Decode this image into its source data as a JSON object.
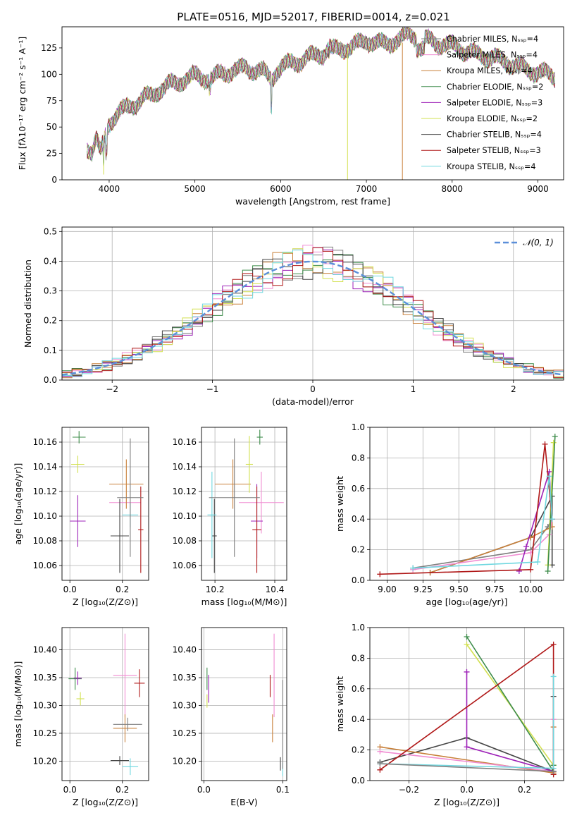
{
  "figure_title": "PLATE=0516, MJD=52017, FIBERID=0014, z=0.021",
  "series_colors": [
    "#7f7f7f",
    "#f08cd2",
    "#c8803a",
    "#3d8c4a",
    "#9e22b8",
    "#d2e050",
    "#454545",
    "#b01818",
    "#70d8e0"
  ],
  "chart_data": [
    {
      "id": "spectrum",
      "type": "line",
      "title": "PLATE=0516, MJD=52017, FIBERID=0014, z=0.021",
      "xlabel": "wavelength [Angstrom, rest frame]",
      "ylabel": "Flux [fλ10⁻¹⁷ erg cm⁻² s⁻¹ A⁻¹]",
      "xlim": [
        3450,
        9300
      ],
      "ylim": [
        0,
        145
      ],
      "xticks": [
        4000,
        5000,
        6000,
        7000,
        8000,
        9000
      ],
      "yticks": [
        0,
        25,
        50,
        75,
        100,
        125
      ],
      "legend": "top-right",
      "x": [
        3740,
        3800,
        3850,
        3900,
        3950,
        4000,
        4100,
        4200,
        4300,
        4400,
        4500,
        4600,
        4700,
        4800,
        4900,
        5000,
        5100,
        5200,
        5300,
        5400,
        5500,
        5600,
        5700,
        5800,
        5890,
        5950,
        6000,
        6100,
        6200,
        6300,
        6400,
        6500,
        6563,
        6600,
        6700,
        6800,
        6900,
        7000,
        7100,
        7200,
        7300,
        7400,
        7500,
        7600,
        7700,
        7800,
        7900,
        8000,
        8100,
        8200,
        8300,
        8400,
        8500,
        8600,
        8700,
        8800,
        8900,
        9000,
        9100,
        9200
      ],
      "y": [
        32,
        27,
        38,
        25,
        40,
        55,
        62,
        68,
        72,
        77,
        80,
        86,
        90,
        92,
        96,
        98,
        97,
        96,
        100,
        103,
        104,
        106,
        104,
        102,
        95,
        104,
        106,
        110,
        112,
        115,
        118,
        120,
        126,
        122,
        124,
        126,
        128,
        132,
        130,
        128,
        131,
        133,
        138,
        136,
        132,
        130,
        128,
        127,
        124,
        121,
        118,
        117,
        115,
        112,
        110,
        106,
        104,
        102,
        100,
        98
      ],
      "series": [
        {
          "name": "Chabrier MILES, Nₛₛₚ=4"
        },
        {
          "name": "Salpeter MILES, Nₛₛₚ=4"
        },
        {
          "name": "Kroupa MILES, Nₛₛₚ=4"
        },
        {
          "name": "Chabrier ELODIE, Nₛₛₚ=2"
        },
        {
          "name": "Salpeter ELODIE, Nₛₛₚ=3"
        },
        {
          "name": "Kroupa ELODIE, Nₛₛₚ=2"
        },
        {
          "name": "Chabrier STELIB, Nₛₛₚ=4"
        },
        {
          "name": "Salpeter STELIB, Nₛₛₚ=3"
        },
        {
          "name": "Kroupa STELIB, Nₛₛₚ=4"
        }
      ]
    },
    {
      "id": "residuals",
      "type": "line",
      "xlabel": "(data-model)/error",
      "ylabel": "Normed distribution",
      "xlim": [
        -2.5,
        2.5
      ],
      "ylim": [
        0,
        0.515
      ],
      "xticks": [
        -2,
        -1,
        0,
        1,
        2
      ],
      "yticks": [
        0.0,
        0.1,
        0.2,
        0.3,
        0.4,
        0.5
      ],
      "grid": true,
      "legend": "top-right",
      "reference_label": "𝒩(0, 1)",
      "bin_width": 0.1
    },
    {
      "id": "age_vs_Z",
      "type": "scatter",
      "xlabel": "Z [log₁₀(Z/Z⊙)]",
      "ylabel": "age  [log₁₀(age/yr)]",
      "xlim": [
        -0.03,
        0.3
      ],
      "ylim": [
        10.048,
        10.172
      ],
      "xticks": [
        0.0,
        0.2
      ],
      "yticks": [
        10.06,
        10.08,
        10.1,
        10.12,
        10.14,
        10.16
      ],
      "grid": true,
      "points": [
        {
          "series": 1,
          "x": 0.21,
          "y": 10.111,
          "ex": 0.06,
          "ey": 0.0
        },
        {
          "series": 2,
          "x": 0.215,
          "y": 10.126,
          "ex": 0.065,
          "ey": 0.02
        },
        {
          "series": 3,
          "x": 0.035,
          "y": 10.164,
          "ex": 0.025,
          "ey": 0.005
        },
        {
          "series": 4,
          "x": 0.03,
          "y": 10.096,
          "ex": 0.03,
          "ey": 0.021
        },
        {
          "series": 5,
          "x": 0.03,
          "y": 10.142,
          "ex": 0.025,
          "ey": 0.007
        },
        {
          "series": 6,
          "x": 0.19,
          "y": 10.084,
          "ex": 0.035,
          "ey": 0.03
        },
        {
          "series": 7,
          "x": 0.27,
          "y": 10.089,
          "ex": 0.01,
          "ey": 0.035
        },
        {
          "series": 8,
          "x": 0.23,
          "y": 10.101,
          "ex": 0.03,
          "ey": 0.01
        },
        {
          "series": 0,
          "x": 0.23,
          "y": 10.115,
          "ex": 0.05,
          "ey": 0.048
        }
      ]
    },
    {
      "id": "age_vs_mass",
      "type": "scatter",
      "xlabel": "mass [log₁₀(M/M⊙)]",
      "ylabel": "",
      "xlim": [
        10.155,
        10.44
      ],
      "ylim": [
        10.048,
        10.172
      ],
      "xticks": [
        10.2,
        10.4
      ],
      "yticks": [
        10.06,
        10.08,
        10.1,
        10.12,
        10.14,
        10.16
      ],
      "grid": true,
      "points": [
        {
          "series": 1,
          "x": 10.355,
          "y": 10.111,
          "ex": 0.075,
          "ey": 0.025
        },
        {
          "series": 2,
          "x": 10.26,
          "y": 10.126,
          "ex": 0.06,
          "ey": 0.02
        },
        {
          "series": 3,
          "x": 10.35,
          "y": 10.164,
          "ex": 0.01,
          "ey": 0.006
        },
        {
          "series": 4,
          "x": 10.34,
          "y": 10.096,
          "ex": 0.02,
          "ey": 0.03
        },
        {
          "series": 5,
          "x": 10.315,
          "y": 10.142,
          "ex": 0.012,
          "ey": 0.023
        },
        {
          "series": 6,
          "x": 10.198,
          "y": 10.084,
          "ex": 0.008,
          "ey": 0.03
        },
        {
          "series": 7,
          "x": 10.34,
          "y": 10.089,
          "ex": 0.015,
          "ey": 0.035
        },
        {
          "series": 8,
          "x": 10.19,
          "y": 10.101,
          "ex": 0.015,
          "ey": 0.035
        },
        {
          "series": 0,
          "x": 10.265,
          "y": 10.115,
          "ex": 0.085,
          "ey": 0.048
        }
      ]
    },
    {
      "id": "mass_weight_vs_age",
      "type": "line",
      "xlabel": "age  [log₁₀(age/yr)]",
      "ylabel": "mass weight",
      "xlim": [
        8.88,
        10.23
      ],
      "ylim": [
        0,
        1.0
      ],
      "xticks": [
        9.0,
        9.25,
        9.5,
        9.75,
        10.0
      ],
      "yticks": [
        0.0,
        0.2,
        0.4,
        0.6,
        0.8,
        1.0
      ],
      "grid": true,
      "lines": [
        {
          "series": 6,
          "x": [
            9.3,
            10.0,
            10.15,
            10.15
          ],
          "y": [
            0.05,
            0.28,
            0.55,
            0.1
          ]
        },
        {
          "series": 0,
          "x": [
            9.18,
            10.0,
            10.12,
            10.15
          ],
          "y": [
            0.08,
            0.2,
            0.35,
            0.4
          ]
        },
        {
          "series": 2,
          "x": [
            9.3,
            10.0,
            10.15,
            10.15
          ],
          "y": [
            0.05,
            0.28,
            0.35,
            0.4
          ]
        },
        {
          "series": 1,
          "x": [
            9.18,
            10.0,
            10.13,
            10.15
          ],
          "y": [
            0.07,
            0.18,
            0.3,
            0.4
          ]
        },
        {
          "series": 4,
          "x": [
            9.92,
            9.97,
            10.13,
            10.15
          ],
          "y": [
            0.06,
            0.22,
            0.71,
            0.4
          ]
        },
        {
          "series": 5,
          "x": [
            10.12,
            10.16
          ],
          "y": [
            0.1,
            0.9
          ]
        },
        {
          "series": 3,
          "x": [
            10.12,
            10.17
          ],
          "y": [
            0.06,
            0.94
          ]
        },
        {
          "series": 7,
          "x": [
            8.95,
            10.0,
            10.1,
            10.15
          ],
          "y": [
            0.04,
            0.07,
            0.89,
            0.4
          ]
        },
        {
          "series": 8,
          "x": [
            9.18,
            10.05,
            10.13,
            10.15
          ],
          "y": [
            0.08,
            0.12,
            0.68,
            0.4
          ]
        }
      ]
    },
    {
      "id": "mass_vs_Z",
      "type": "scatter",
      "xlabel": "Z [log₁₀(Z/Z⊙)]",
      "ylabel": "mass [log₁₀(M/M⊙)]",
      "xlim": [
        -0.03,
        0.3
      ],
      "ylim": [
        10.165,
        10.44
      ],
      "xticks": [
        0.0,
        0.2
      ],
      "yticks": [
        10.2,
        10.25,
        10.3,
        10.35,
        10.4
      ],
      "grid": true,
      "points": [
        {
          "series": 1,
          "x": 0.21,
          "y": 10.354,
          "ex": 0.045,
          "ey": 0.075
        },
        {
          "series": 2,
          "x": 0.21,
          "y": 10.259,
          "ex": 0.045,
          "ey": 0.025
        },
        {
          "series": 3,
          "x": 0.02,
          "y": 10.348,
          "ex": 0.025,
          "ey": 0.02
        },
        {
          "series": 4,
          "x": 0.03,
          "y": 10.349,
          "ex": 0.015,
          "ey": 0.012
        },
        {
          "series": 5,
          "x": 0.04,
          "y": 10.312,
          "ex": 0.015,
          "ey": 0.012
        },
        {
          "series": 6,
          "x": 0.19,
          "y": 10.201,
          "ex": 0.035,
          "ey": 0.008
        },
        {
          "series": 7,
          "x": 0.265,
          "y": 10.34,
          "ex": 0.02,
          "ey": 0.025
        },
        {
          "series": 8,
          "x": 0.23,
          "y": 10.19,
          "ex": 0.03,
          "ey": 0.015
        },
        {
          "series": 0,
          "x": 0.22,
          "y": 10.266,
          "ex": 0.055,
          "ey": 0.012
        }
      ]
    },
    {
      "id": "mass_vs_ebv",
      "type": "scatter",
      "xlabel": "E(B-V)",
      "ylabel": "",
      "xlim": [
        -0.003,
        0.105
      ],
      "ylim": [
        10.165,
        10.44
      ],
      "xticks": [
        0.0,
        0.1
      ],
      "yticks": [
        10.2,
        10.25,
        10.3,
        10.35,
        10.4
      ],
      "grid": true,
      "points": [
        {
          "series": 1,
          "x": 0.089,
          "y": 10.354,
          "ex": 0.0,
          "ey": 0.075
        },
        {
          "series": 2,
          "x": 0.087,
          "y": 10.259,
          "ex": 0.0,
          "ey": 0.025
        },
        {
          "series": 3,
          "x": 0.004,
          "y": 10.348,
          "ex": 0.0,
          "ey": 0.02
        },
        {
          "series": 4,
          "x": 0.006,
          "y": 10.33,
          "ex": 0.0,
          "ey": 0.025
        },
        {
          "series": 5,
          "x": 0.004,
          "y": 10.308,
          "ex": 0.0,
          "ey": 0.012
        },
        {
          "series": 6,
          "x": 0.097,
          "y": 10.195,
          "ex": 0.0,
          "ey": 0.012
        },
        {
          "series": 7,
          "x": 0.084,
          "y": 10.335,
          "ex": 0.0,
          "ey": 0.02
        },
        {
          "series": 8,
          "x": 0.1,
          "y": 10.185,
          "ex": 0.0,
          "ey": 0.012
        },
        {
          "series": 0,
          "x": 0.1,
          "y": 10.266,
          "ex": 0.0,
          "ey": 0.08
        }
      ]
    },
    {
      "id": "mass_weight_vs_Z",
      "type": "line",
      "xlabel": "Z [log₁₀(Z/Z⊙)]",
      "ylabel": "mass weight",
      "xlim": [
        -0.335,
        0.335
      ],
      "ylim": [
        0,
        1.0
      ],
      "xticks": [
        -0.2,
        0.0,
        0.2
      ],
      "yticks": [
        0.0,
        0.2,
        0.4,
        0.6,
        0.8,
        1.0
      ],
      "grid": true,
      "lines": [
        {
          "series": 6,
          "x": [
            -0.3,
            0.0,
            0.3,
            0.3
          ],
          "y": [
            0.12,
            0.28,
            0.06,
            0.55
          ]
        },
        {
          "series": 2,
          "x": [
            -0.3,
            0.3,
            0.3
          ],
          "y": [
            0.22,
            0.05,
            0.35
          ]
        },
        {
          "series": 1,
          "x": [
            -0.3,
            0.3,
            0.3
          ],
          "y": [
            0.19,
            0.06,
            0.4
          ]
        },
        {
          "series": 4,
          "x": [
            0.0,
            0.0,
            0.3
          ],
          "y": [
            0.71,
            0.22,
            0.06
          ]
        },
        {
          "series": 5,
          "x": [
            0.0,
            0.3,
            0.3
          ],
          "y": [
            0.89,
            0.1,
            0.1
          ]
        },
        {
          "series": 3,
          "x": [
            0.0,
            0.3,
            0.3
          ],
          "y": [
            0.94,
            0.06,
            0.1
          ]
        },
        {
          "series": 7,
          "x": [
            -0.3,
            0.3,
            0.3
          ],
          "y": [
            0.07,
            0.89,
            0.04
          ]
        },
        {
          "series": 8,
          "x": [
            -0.3,
            0.3,
            0.3
          ],
          "y": [
            0.11,
            0.08,
            0.68
          ]
        },
        {
          "series": 0,
          "x": [
            -0.3,
            0.3
          ],
          "y": [
            0.11,
            0.06
          ]
        }
      ]
    }
  ]
}
